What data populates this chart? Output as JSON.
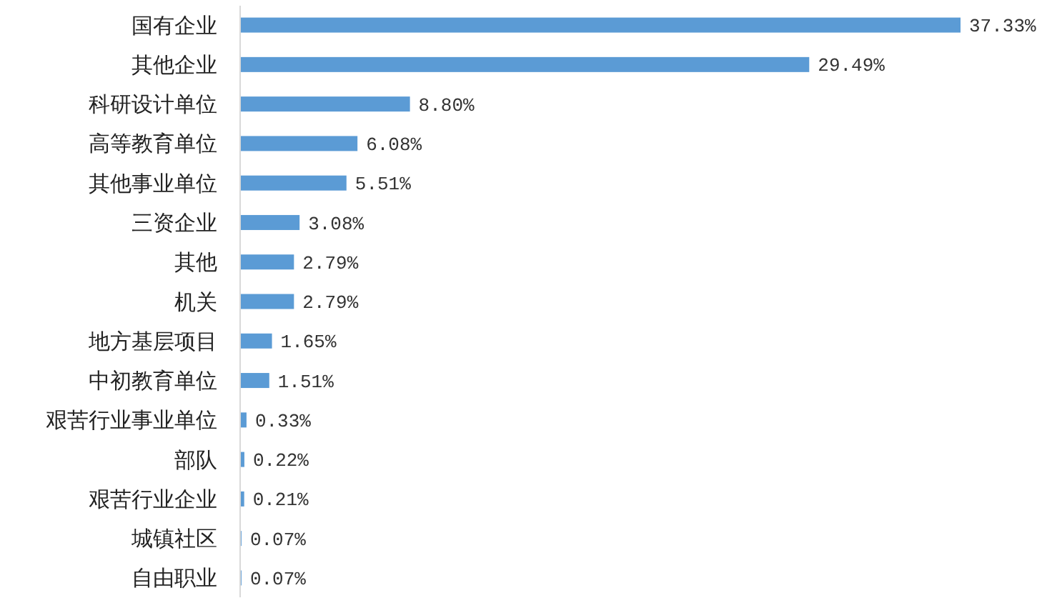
{
  "chart_data": {
    "type": "bar",
    "orientation": "horizontal",
    "relative": false,
    "categories": [
      "国有企业",
      "其他企业",
      "科研设计单位",
      "高等教育单位",
      "其他事业单位",
      "三资企业",
      "其他",
      "机关",
      "地方基层项目",
      "中初教育单位",
      "艰苦行业事业单位",
      "部队",
      "艰苦行业企业",
      "城镇社区",
      "自由职业"
    ],
    "values": [
      37.33,
      29.49,
      8.8,
      6.08,
      5.51,
      3.08,
      2.79,
      2.79,
      1.65,
      1.51,
      0.33,
      0.22,
      0.21,
      0.07,
      0.07
    ],
    "value_labels": [
      "37.33%",
      "29.49%",
      "8.80%",
      "6.08%",
      "5.51%",
      "3.08%",
      "2.79%",
      "2.79%",
      "1.65%",
      "1.51%",
      "0.33%",
      "0.22%",
      "0.21%",
      "0.07%",
      "0.07%"
    ],
    "color": "#5b9bd5"
  }
}
